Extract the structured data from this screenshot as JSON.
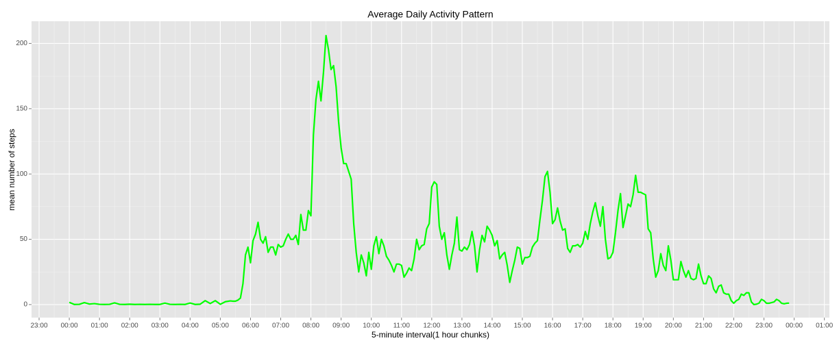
{
  "chart_data": {
    "type": "line",
    "title": "Average Daily Activity Pattern",
    "x_label": "5-minute interval(1 hour chunks)",
    "y_label": "mean number of steps",
    "color": "#00ff00",
    "grid": true,
    "xlim": [
      -75,
      1510
    ],
    "ylim": [
      -10,
      217
    ],
    "yticks": [
      0,
      50,
      100,
      150,
      200
    ],
    "xticks": [
      {
        "value": -60,
        "label": "23:00"
      },
      {
        "value": 0,
        "label": "00:00"
      },
      {
        "value": 60,
        "label": "01:00"
      },
      {
        "value": 120,
        "label": "02:00"
      },
      {
        "value": 180,
        "label": "03:00"
      },
      {
        "value": 240,
        "label": "04:00"
      },
      {
        "value": 300,
        "label": "05:00"
      },
      {
        "value": 360,
        "label": "06:00"
      },
      {
        "value": 420,
        "label": "07:00"
      },
      {
        "value": 480,
        "label": "08:00"
      },
      {
        "value": 540,
        "label": "09:00"
      },
      {
        "value": 600,
        "label": "10:00"
      },
      {
        "value": 660,
        "label": "11:00"
      },
      {
        "value": 720,
        "label": "12:00"
      },
      {
        "value": 780,
        "label": "13:00"
      },
      {
        "value": 840,
        "label": "14:00"
      },
      {
        "value": 900,
        "label": "15:00"
      },
      {
        "value": 960,
        "label": "16:00"
      },
      {
        "value": 1020,
        "label": "17:00"
      },
      {
        "value": 1080,
        "label": "18:00"
      },
      {
        "value": 1140,
        "label": "19:00"
      },
      {
        "value": 1200,
        "label": "20:00"
      },
      {
        "value": 1260,
        "label": "21:00"
      },
      {
        "value": 1320,
        "label": "22:00"
      },
      {
        "value": 1380,
        "label": "23:00"
      },
      {
        "value": 1440,
        "label": "00:00"
      },
      {
        "value": 1500,
        "label": "01:00"
      }
    ],
    "x": [
      0,
      10,
      20,
      30,
      40,
      50,
      60,
      70,
      80,
      90,
      100,
      110,
      120,
      130,
      140,
      150,
      160,
      170,
      180,
      190,
      200,
      210,
      220,
      230,
      240,
      250,
      260,
      270,
      280,
      290,
      300,
      310,
      320,
      325,
      330,
      335,
      340,
      345,
      350,
      355,
      360,
      365,
      370,
      375,
      380,
      385,
      390,
      395,
      400,
      405,
      410,
      415,
      420,
      425,
      430,
      435,
      440,
      445,
      450,
      455,
      460,
      465,
      470,
      475,
      480,
      485,
      490,
      495,
      500,
      505,
      510,
      515,
      520,
      525,
      530,
      535,
      540,
      545,
      550,
      555,
      560,
      565,
      570,
      575,
      580,
      585,
      590,
      595,
      600,
      605,
      610,
      615,
      620,
      625,
      630,
      635,
      640,
      645,
      650,
      655,
      660,
      665,
      670,
      675,
      680,
      685,
      690,
      695,
      700,
      705,
      710,
      715,
      720,
      725,
      730,
      735,
      740,
      745,
      750,
      755,
      760,
      765,
      770,
      775,
      780,
      785,
      790,
      795,
      800,
      805,
      810,
      815,
      820,
      825,
      830,
      835,
      840,
      845,
      850,
      855,
      860,
      865,
      870,
      875,
      880,
      885,
      890,
      895,
      900,
      905,
      910,
      915,
      920,
      925,
      930,
      935,
      940,
      945,
      950,
      955,
      960,
      965,
      970,
      975,
      980,
      985,
      990,
      995,
      1000,
      1005,
      1010,
      1015,
      1020,
      1025,
      1030,
      1035,
      1040,
      1045,
      1050,
      1055,
      1060,
      1065,
      1070,
      1075,
      1080,
      1085,
      1090,
      1095,
      1100,
      1105,
      1110,
      1115,
      1120,
      1125,
      1130,
      1135,
      1140,
      1145,
      1150,
      1155,
      1160,
      1165,
      1170,
      1175,
      1180,
      1185,
      1190,
      1195,
      1200,
      1205,
      1210,
      1215,
      1220,
      1225,
      1230,
      1235,
      1240,
      1245,
      1250,
      1255,
      1260,
      1265,
      1270,
      1275,
      1280,
      1285,
      1290,
      1295,
      1300,
      1305,
      1310,
      1315,
      1320,
      1325,
      1330,
      1335,
      1340,
      1345,
      1350,
      1355,
      1360,
      1365,
      1370,
      1375,
      1380,
      1385,
      1390,
      1395,
      1400,
      1405,
      1410,
      1415,
      1420,
      1425,
      1430
    ],
    "values": [
      1.7,
      0.1,
      0.2,
      1.5,
      0.4,
      0.7,
      0.2,
      0.1,
      0.2,
      1.3,
      0.2,
      0.1,
      0.3,
      0.1,
      0.2,
      0.1,
      0.2,
      0.1,
      0.1,
      1.1,
      0.2,
      0.1,
      0.2,
      0.1,
      1.2,
      0.1,
      0.3,
      3.0,
      0.8,
      3.0,
      0.2,
      2.2,
      2.8,
      2.6,
      2.6,
      3.4,
      5,
      16,
      38,
      44,
      32,
      49,
      54,
      63,
      50,
      47,
      52,
      40,
      44,
      44,
      38,
      46,
      44,
      45,
      50,
      54,
      50,
      50,
      53,
      46,
      69,
      57,
      57,
      72,
      68,
      130,
      157,
      171,
      156,
      178,
      206,
      195,
      180,
      183,
      167,
      140,
      120,
      108,
      108,
      102,
      96,
      62,
      40,
      25,
      38,
      32,
      22,
      40,
      27,
      45,
      52,
      39,
      50,
      45,
      37,
      34,
      30,
      25,
      31,
      31,
      30,
      21,
      24,
      28,
      26,
      35,
      50,
      42,
      45,
      46,
      58,
      62,
      90,
      94,
      92,
      60,
      50,
      55,
      38,
      27,
      38,
      47,
      67,
      42,
      41,
      44,
      42,
      46,
      56,
      45,
      25,
      42,
      53,
      48,
      60,
      57,
      53,
      45,
      49,
      35,
      38,
      40,
      30,
      17,
      26,
      34,
      44,
      43,
      31,
      36,
      36,
      37,
      44,
      47,
      49,
      65,
      80,
      98,
      102,
      86,
      62,
      65,
      74,
      64,
      57,
      58,
      43,
      40,
      45,
      45,
      46,
      44,
      47,
      56,
      50,
      62,
      71,
      78,
      68,
      60,
      75,
      50,
      35,
      36,
      40,
      55,
      72,
      85,
      59,
      68,
      77,
      75,
      84,
      99,
      86,
      86,
      85,
      84,
      58,
      55,
      35,
      21,
      26,
      39,
      30,
      26,
      45,
      34,
      19,
      19,
      19,
      33,
      26,
      21,
      26,
      20,
      19,
      20,
      31,
      22,
      16,
      16,
      22,
      20,
      12,
      9,
      14,
      15,
      9,
      8,
      8,
      3,
      1,
      3,
      4,
      8,
      7,
      9,
      9,
      2,
      0,
      0.3,
      1,
      4,
      3,
      1,
      1,
      1.5,
      2,
      4,
      3,
      1,
      0.6,
      1,
      1.1
    ]
  }
}
